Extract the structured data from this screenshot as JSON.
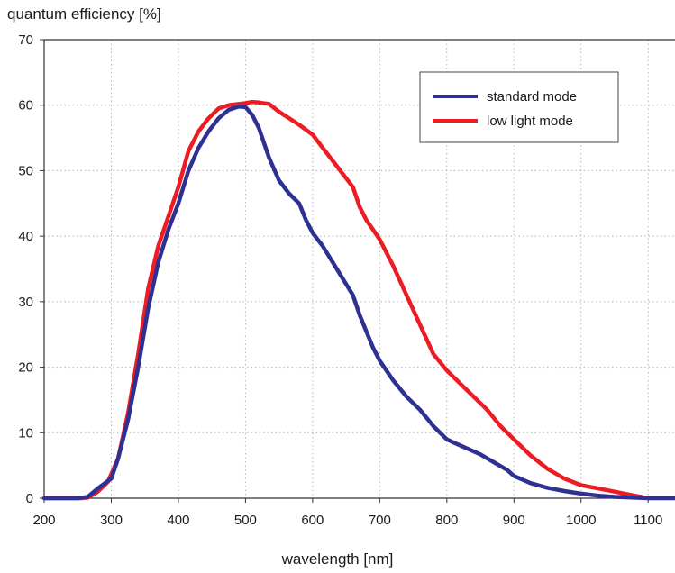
{
  "chart_data": {
    "type": "line",
    "ylabel": "quantum efficiency [%]",
    "xlabel": "wavelength [nm]",
    "xlim": [
      200,
      1140
    ],
    "ylim": [
      0,
      70
    ],
    "xticks": [
      200,
      300,
      400,
      500,
      600,
      700,
      800,
      900,
      1000,
      1100
    ],
    "yticks": [
      0,
      10,
      20,
      30,
      40,
      50,
      60,
      70
    ],
    "grid": true,
    "legend_position": "top-right",
    "series": [
      {
        "name": "standard mode",
        "color": "#2e3192",
        "x": [
          200,
          250,
          265,
          280,
          300,
          310,
          325,
          340,
          355,
          370,
          385,
          400,
          415,
          430,
          445,
          460,
          475,
          490,
          500,
          510,
          520,
          535,
          550,
          565,
          580,
          590,
          600,
          615,
          630,
          645,
          660,
          670,
          680,
          690,
          700,
          720,
          740,
          760,
          780,
          800,
          810,
          830,
          850,
          870,
          890,
          900,
          925,
          950,
          975,
          1000,
          1025,
          1050,
          1075,
          1100,
          1125,
          1140
        ],
        "y": [
          0,
          0,
          0.2,
          1.5,
          3,
          6,
          12,
          20,
          29,
          36,
          41,
          45,
          50,
          53.5,
          56,
          58,
          59.3,
          59.8,
          59.7,
          58.5,
          56.5,
          52,
          48.5,
          46.5,
          45,
          42.5,
          40.5,
          38.5,
          36,
          33.5,
          31,
          28,
          25.5,
          23,
          21,
          18,
          15.5,
          13.5,
          11,
          9,
          8.5,
          7.6,
          6.7,
          5.5,
          4.3,
          3.4,
          2.3,
          1.6,
          1.1,
          0.7,
          0.4,
          0.2,
          0.1,
          0,
          0,
          0
        ]
      },
      {
        "name": "low light mode",
        "color": "#ed1c24",
        "x": [
          200,
          255,
          265,
          280,
          295,
          310,
          325,
          340,
          355,
          370,
          385,
          400,
          415,
          430,
          445,
          460,
          475,
          490,
          500,
          510,
          520,
          535,
          550,
          565,
          580,
          600,
          615,
          630,
          645,
          660,
          670,
          680,
          690,
          700,
          720,
          740,
          760,
          780,
          800,
          820,
          840,
          860,
          880,
          900,
          925,
          950,
          975,
          1000,
          1025,
          1050,
          1075,
          1100
        ],
        "y": [
          0,
          0,
          0.1,
          1,
          2.5,
          6,
          13,
          22,
          32,
          38.5,
          43,
          47.5,
          53,
          56,
          58,
          59.5,
          60,
          60.2,
          60.3,
          60.5,
          60.4,
          60.2,
          59,
          58,
          57,
          55.5,
          53.5,
          51.5,
          49.5,
          47.5,
          44.5,
          42.5,
          41,
          39.5,
          35.5,
          31,
          26.5,
          22,
          19.5,
          17.5,
          15.5,
          13.5,
          11,
          9,
          6.5,
          4.5,
          3,
          2,
          1.5,
          1,
          0.5,
          0
        ]
      }
    ]
  }
}
